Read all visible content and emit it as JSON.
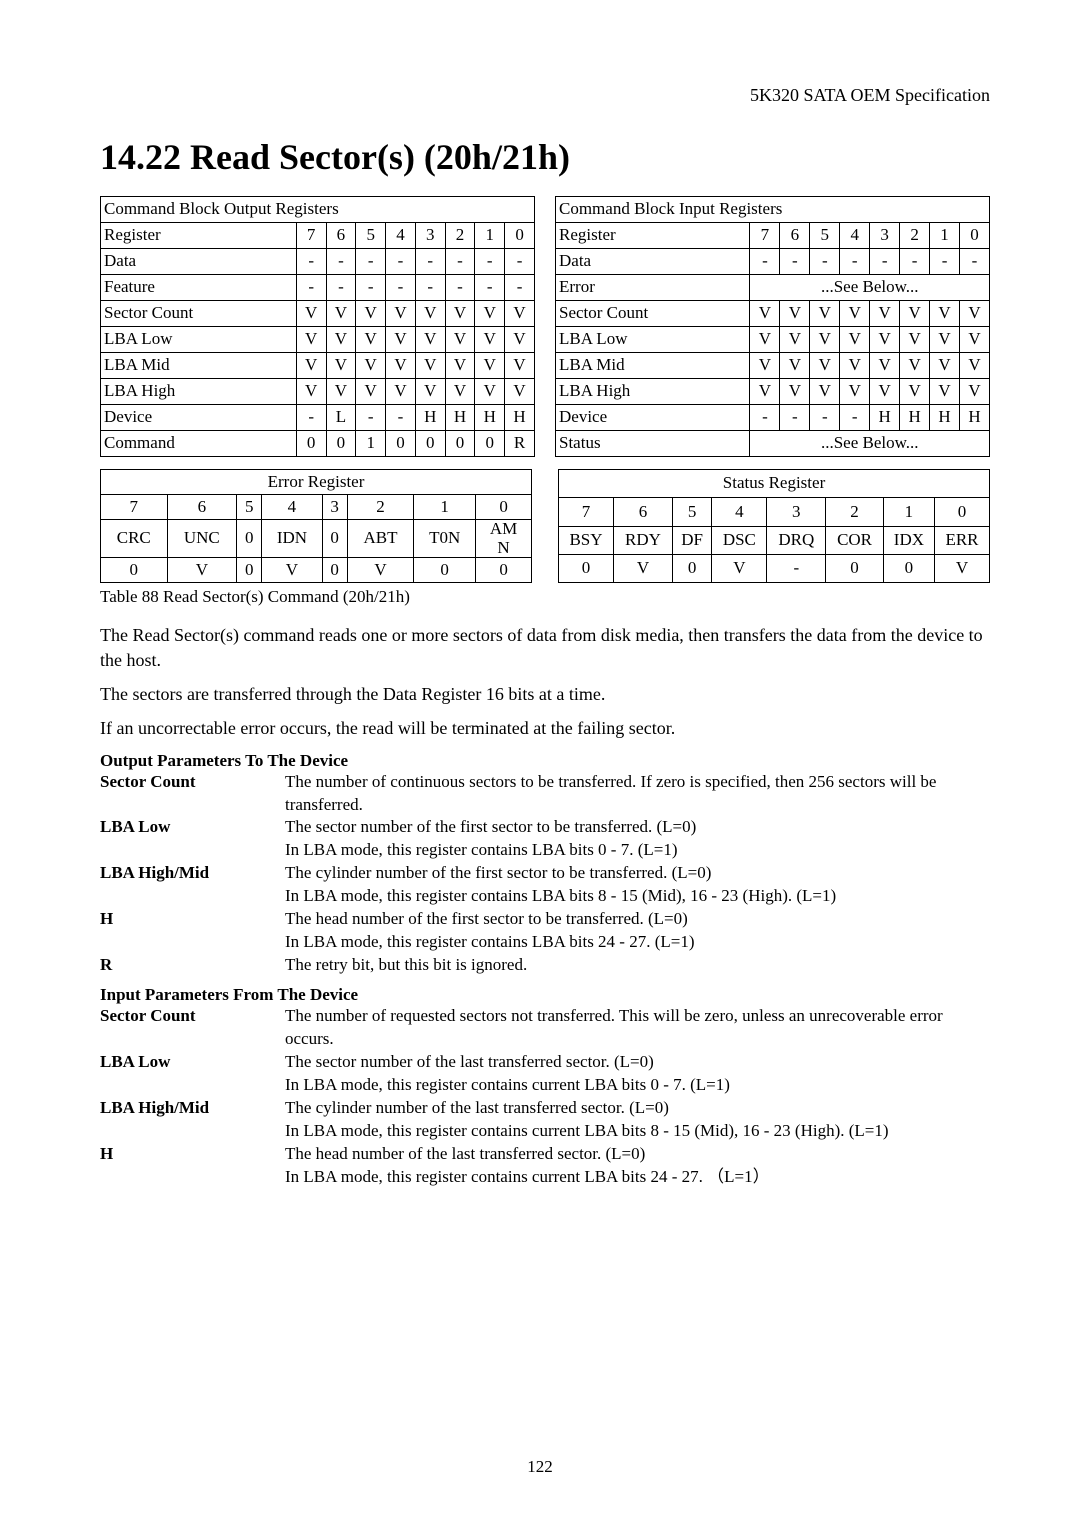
{
  "spec_header": "5K320 SATA OEM Specification",
  "section_title": "14.22    Read Sector(s) (20h/21h)",
  "output_block_title": "Command Block Output Registers",
  "input_block_title": "Command Block Input Registers",
  "bit_labels": [
    "7",
    "6",
    "5",
    "4",
    "3",
    "2",
    "1",
    "0"
  ],
  "output_rows": [
    {
      "label": "Register",
      "cells": [
        "7",
        "6",
        "5",
        "4",
        "3",
        "2",
        "1",
        "0"
      ]
    },
    {
      "label": "Data",
      "cells": [
        "-",
        "-",
        "-",
        "-",
        "-",
        "-",
        "-",
        "-"
      ]
    },
    {
      "label": "Feature",
      "cells": [
        "-",
        "-",
        "-",
        "-",
        "-",
        "-",
        "-",
        "-"
      ]
    },
    {
      "label": "Sector Count",
      "cells": [
        "V",
        "V",
        "V",
        "V",
        "V",
        "V",
        "V",
        "V"
      ]
    },
    {
      "label": "LBA Low",
      "cells": [
        "V",
        "V",
        "V",
        "V",
        "V",
        "V",
        "V",
        "V"
      ]
    },
    {
      "label": "LBA Mid",
      "cells": [
        "V",
        "V",
        "V",
        "V",
        "V",
        "V",
        "V",
        "V"
      ]
    },
    {
      "label": "LBA High",
      "cells": [
        "V",
        "V",
        "V",
        "V",
        "V",
        "V",
        "V",
        "V"
      ]
    },
    {
      "label": "Device",
      "cells": [
        "-",
        "L",
        "-",
        "-",
        "H",
        "H",
        "H",
        "H"
      ]
    },
    {
      "label": "Command",
      "cells": [
        "0",
        "0",
        "1",
        "0",
        "0",
        "0",
        "0",
        "R"
      ]
    }
  ],
  "input_rows": [
    {
      "label": "Register",
      "cells": [
        "7",
        "6",
        "5",
        "4",
        "3",
        "2",
        "1",
        "0"
      ]
    },
    {
      "label": "Data",
      "cells": [
        "-",
        "-",
        "-",
        "-",
        "-",
        "-",
        "-",
        "-"
      ]
    },
    {
      "label": "Error",
      "see": "...See Below..."
    },
    {
      "label": "Sector Count",
      "cells": [
        "V",
        "V",
        "V",
        "V",
        "V",
        "V",
        "V",
        "V"
      ]
    },
    {
      "label": "LBA Low",
      "cells": [
        "V",
        "V",
        "V",
        "V",
        "V",
        "V",
        "V",
        "V"
      ]
    },
    {
      "label": "LBA Mid",
      "cells": [
        "V",
        "V",
        "V",
        "V",
        "V",
        "V",
        "V",
        "V"
      ]
    },
    {
      "label": "LBA High",
      "cells": [
        "V",
        "V",
        "V",
        "V",
        "V",
        "V",
        "V",
        "V"
      ]
    },
    {
      "label": "Device",
      "cells": [
        "-",
        "-",
        "-",
        "-",
        "H",
        "H",
        "H",
        "H"
      ]
    },
    {
      "label": "Status",
      "see": "...See Below..."
    }
  ],
  "error_reg_title": "Error Register",
  "status_reg_title": "Status Register",
  "error_bits": [
    "7",
    "6",
    "5",
    "4",
    "3",
    "2",
    "1",
    "0"
  ],
  "error_names": [
    "CRC",
    "UNC",
    "0",
    "IDN",
    "0",
    "ABT",
    "T0N",
    "AM\nN"
  ],
  "error_vals": [
    "0",
    "V",
    "0",
    "V",
    "0",
    "V",
    "0",
    "0"
  ],
  "status_bits": [
    "7",
    "6",
    "5",
    "4",
    "3",
    "2",
    "1",
    "0"
  ],
  "status_names": [
    "BSY",
    "RDY",
    "DF",
    "DSC",
    "DRQ",
    "COR",
    "IDX",
    "ERR"
  ],
  "status_vals": [
    "0",
    "V",
    "0",
    "V",
    "-",
    "0",
    "0",
    "V"
  ],
  "table_caption": "Table 88 Read Sector(s) Command (20h/21h)",
  "para1": "The Read Sector(s) command reads one or more sectors of data from disk media, then transfers the data from the device to the host.",
  "para2": "The sectors are transferred through the Data Register 16 bits at a time.",
  "para3": "If an uncorrectable error occurs, the read will be terminated at the failing sector.",
  "out_params_heading": "Output Parameters To The Device",
  "in_params_heading": "Input Parameters From The Device",
  "out_params": [
    {
      "label": "Sector Count",
      "desc": "The number of continuous sectors to be transferred. If zero is specified, then 256 sectors will be transferred."
    },
    {
      "label": "LBA Low",
      "desc": "The sector number of the first sector to be transferred. (L=0)"
    },
    {
      "label": "",
      "desc": "In LBA mode, this register contains LBA bits 0 - 7. (L=1)"
    },
    {
      "label": "LBA High/Mid",
      "desc": "The cylinder number of the first sector to be transferred. (L=0)"
    },
    {
      "label": "",
      "desc": "In LBA mode, this register contains LBA bits 8 - 15 (Mid), 16 - 23 (High). (L=1)"
    },
    {
      "label": "H",
      "desc": "The head number of the first sector to be transferred. (L=0)"
    },
    {
      "label": "",
      "desc": "In LBA mode, this register contains LBA bits 24 - 27. (L=1)"
    },
    {
      "label": "R",
      "desc": "The retry bit, but this bit is ignored."
    }
  ],
  "in_params": [
    {
      "label": "Sector Count",
      "desc": "The number of requested sectors not transferred. This will be zero, unless an unrecoverable error occurs."
    },
    {
      "label": "LBA Low",
      "desc": "The sector number of the last transferred sector. (L=0)"
    },
    {
      "label": "",
      "desc": "In LBA mode, this register contains current LBA bits 0 - 7. (L=1)"
    },
    {
      "label": "LBA High/Mid",
      "desc": "The cylinder number of the last transferred sector. (L=0)"
    },
    {
      "label": "",
      "desc": "In LBA mode, this register contains current LBA bits 8 - 15 (Mid), 16 - 23 (High). (L=1)"
    },
    {
      "label": "H",
      "desc": "The head number of the last transferred sector. (L=0)"
    },
    {
      "label": "",
      "desc": "In LBA mode, this register contains current LBA bits 24 - 27.  （L=1）"
    }
  ],
  "page_number": "122"
}
